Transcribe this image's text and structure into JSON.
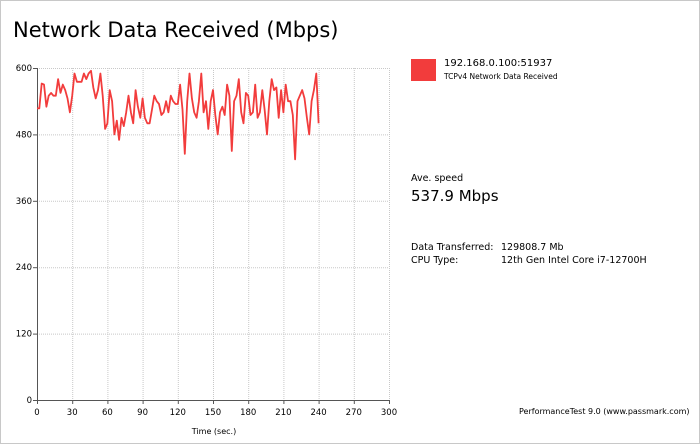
{
  "chart_data": {
    "type": "line",
    "title": "Network Data Received (Mbps)",
    "xlabel": "Time (sec.)",
    "ylabel": "",
    "xlim": [
      0,
      300
    ],
    "ylim": [
      0,
      600
    ],
    "xticks": [
      0,
      30,
      60,
      90,
      120,
      150,
      180,
      210,
      240,
      270,
      300
    ],
    "yticks": [
      0,
      120,
      240,
      360,
      480,
      600
    ],
    "grid": true,
    "legend_position": "right",
    "series": [
      {
        "name": "192.168.0.100:51937",
        "description": "TCPv4 Network Data Received",
        "color": "#f23c3c",
        "x": [
          0,
          2,
          4,
          6,
          8,
          10,
          12,
          14,
          16,
          18,
          20,
          22,
          24,
          26,
          28,
          30,
          32,
          34,
          36,
          38,
          40,
          42,
          44,
          46,
          48,
          50,
          52,
          54,
          56,
          58,
          60,
          62,
          64,
          66,
          68,
          70,
          72,
          74,
          76,
          78,
          80,
          82,
          84,
          86,
          88,
          90,
          92,
          94,
          96,
          98,
          100,
          102,
          104,
          106,
          108,
          110,
          112,
          114,
          116,
          118,
          120,
          122,
          124,
          126,
          128,
          130,
          132,
          134,
          136,
          138,
          140,
          142,
          144,
          146,
          148,
          150,
          152,
          154,
          156,
          158,
          160,
          162,
          164,
          166,
          168,
          170,
          172,
          174,
          176,
          178,
          180,
          182,
          184,
          186,
          188,
          190,
          192,
          194,
          196,
          198,
          200,
          202,
          204,
          206,
          208,
          210,
          212,
          214,
          216,
          218,
          220,
          222,
          224,
          226,
          228,
          230,
          232,
          234,
          236,
          238,
          240
        ],
        "values": [
          527,
          527,
          572,
          570,
          530,
          550,
          555,
          550,
          550,
          580,
          555,
          570,
          560,
          545,
          520,
          550,
          590,
          575,
          575,
          575,
          590,
          580,
          590,
          595,
          565,
          545,
          560,
          590,
          550,
          490,
          500,
          560,
          540,
          480,
          505,
          470,
          510,
          495,
          520,
          550,
          520,
          500,
          560,
          530,
          510,
          545,
          510,
          500,
          500,
          525,
          550,
          540,
          535,
          515,
          520,
          540,
          520,
          550,
          540,
          535,
          535,
          570,
          525,
          445,
          540,
          590,
          545,
          520,
          510,
          540,
          590,
          520,
          540,
          490,
          540,
          560,
          515,
          480,
          520,
          530,
          515,
          570,
          550,
          450,
          540,
          550,
          580,
          520,
          500,
          555,
          550,
          515,
          520,
          570,
          510,
          520,
          560,
          525,
          480,
          540,
          580,
          560,
          565,
          510,
          560,
          520,
          570,
          540,
          540,
          515,
          435,
          540,
          550,
          560,
          545,
          510,
          480,
          540,
          560,
          590,
          500
        ]
      }
    ]
  },
  "legend": {
    "name": "192.168.0.100:51937",
    "description": "TCPv4 Network Data Received"
  },
  "stats": {
    "ave_label": "Ave. speed",
    "ave_value": "537.9 Mbps",
    "data_transferred_label": "Data Transferred:",
    "data_transferred_value": "129808.7 Mb",
    "cpu_label": "CPU Type:",
    "cpu_value": "12th Gen Intel Core i7-12700H"
  },
  "footer": {
    "credit": "PerformanceTest 9.0 (www.passmark.com)"
  }
}
